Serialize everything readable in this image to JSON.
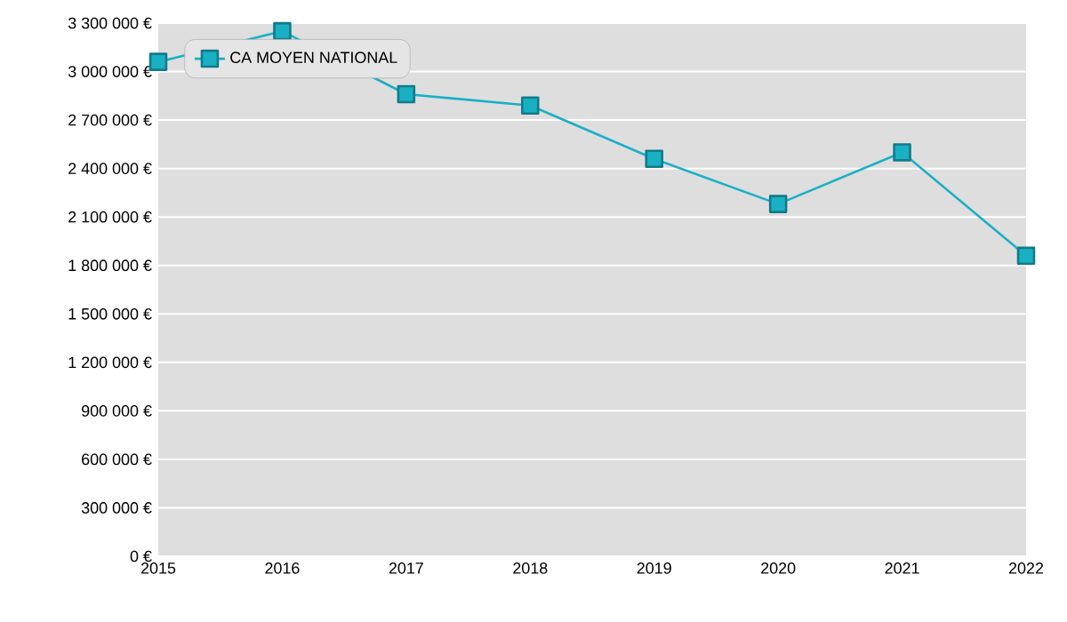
{
  "chart_data": {
    "type": "line",
    "x": [
      2015,
      2016,
      2017,
      2018,
      2019,
      2020,
      2021,
      2022
    ],
    "series": [
      {
        "name": "CA MOYEN NATIONAL",
        "color": "#1ab0c4",
        "values": [
          3060000,
          3250000,
          2860000,
          2790000,
          2460000,
          2180000,
          2500000,
          1860000
        ]
      }
    ],
    "xlim": [
      2015,
      2022
    ],
    "xticks": [
      2015,
      2016,
      2017,
      2018,
      2019,
      2020,
      2021,
      2022
    ],
    "ylim": [
      0,
      3300000
    ],
    "yticks": [
      {
        "value": 0,
        "label": "0 €"
      },
      {
        "value": 300000,
        "label": "300 000 €"
      },
      {
        "value": 600000,
        "label": "600 000 €"
      },
      {
        "value": 900000,
        "label": "900 000 €"
      },
      {
        "value": 1200000,
        "label": "1 200 000 €"
      },
      {
        "value": 1500000,
        "label": "1 500 000 €"
      },
      {
        "value": 1800000,
        "label": "1 800 000 €"
      },
      {
        "value": 2100000,
        "label": "2 100 000 €"
      },
      {
        "value": 2400000,
        "label": "2 400 000 €"
      },
      {
        "value": 2700000,
        "label": "2 700 000 €"
      },
      {
        "value": 3000000,
        "label": "3 000 000 €"
      },
      {
        "value": 3300000,
        "label": "3 300 000 €"
      }
    ],
    "grid": "y",
    "legend": "top left",
    "marker": "square",
    "line_style": "solid"
  }
}
